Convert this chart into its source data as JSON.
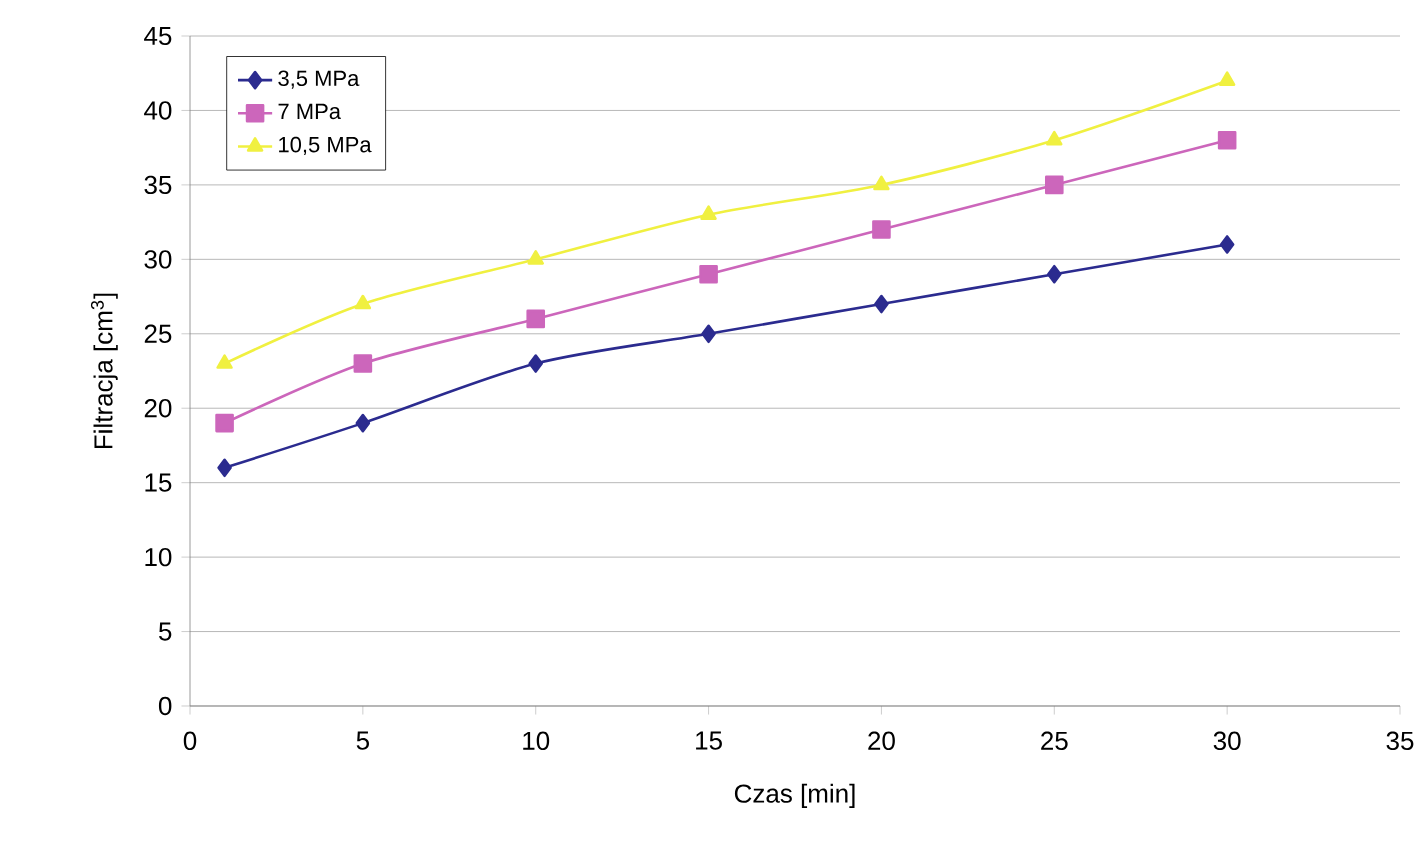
{
  "chart_data": {
    "type": "line",
    "xlabel": "Czas [min]",
    "ylabel": "Filtracja [cm$^{3}$]",
    "x": [
      1,
      5,
      10,
      15,
      20,
      25,
      30
    ],
    "series": [
      {
        "name": "3,5 MPa",
        "color": "#2b2b8f",
        "marker": "diamond",
        "values": [
          16,
          19,
          23,
          25,
          27,
          29,
          31
        ]
      },
      {
        "name": "7 MPa",
        "color": "#cc66bb",
        "marker": "square",
        "values": [
          19,
          23,
          26,
          29,
          32,
          35,
          38
        ]
      },
      {
        "name": "10,5 MPa",
        "color": "#f0f040",
        "marker": "triangle",
        "values": [
          23,
          27,
          30,
          33,
          35,
          38,
          42
        ]
      }
    ],
    "xlim": [
      0,
      35
    ],
    "xticks": [
      0,
      5,
      10,
      15,
      20,
      25,
      30,
      35
    ],
    "ylim": [
      0,
      45
    ],
    "yticks": [
      0,
      5,
      10,
      15,
      20,
      25,
      30,
      35,
      40,
      45
    ],
    "grid": "y",
    "legend": "top left",
    "line_style": "solid"
  }
}
